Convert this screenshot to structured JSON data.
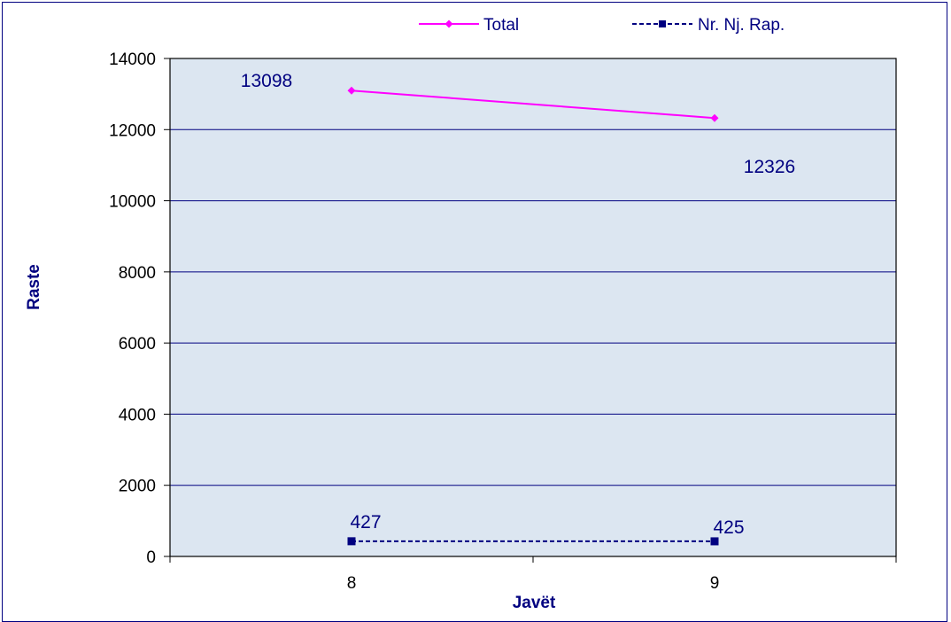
{
  "chart_data": {
    "type": "line",
    "title": "",
    "xlabel": "Javët",
    "ylabel": "Raste",
    "categories": [
      "8",
      "9"
    ],
    "ylim": [
      0,
      14000
    ],
    "yticks": [
      "0",
      "2000",
      "4000",
      "6000",
      "8000",
      "10000",
      "12000",
      "14000"
    ],
    "grid": true,
    "legend_position": "top",
    "series": [
      {
        "name": "Total",
        "values": [
          13098,
          12326
        ],
        "labels": [
          "13098",
          "12326"
        ],
        "color": "#ff00ff",
        "marker": "diamond",
        "line_style": "solid"
      },
      {
        "name": "Nr. Nj. Rap.",
        "values": [
          427,
          425
        ],
        "labels": [
          "427",
          "425"
        ],
        "color": "#000080",
        "marker": "square",
        "line_style": "dashed"
      }
    ],
    "colors": {
      "plot_background": "#dce6f1",
      "gridline": "#000080",
      "axis": "#000000",
      "frame": "#000080"
    }
  }
}
